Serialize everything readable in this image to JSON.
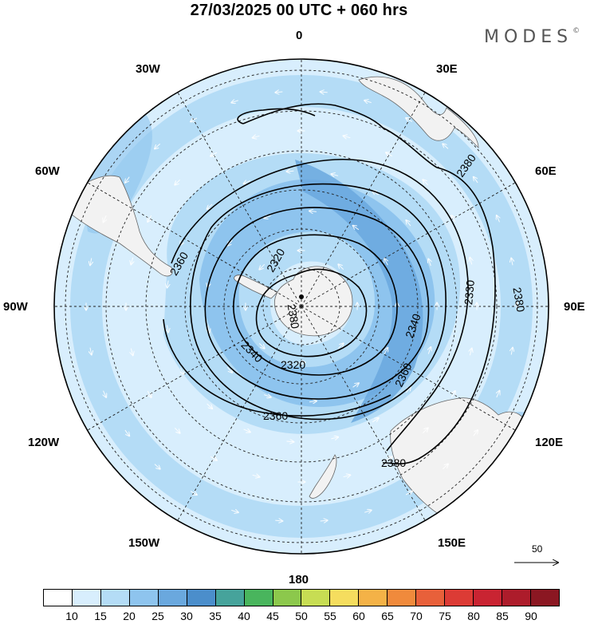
{
  "header": {
    "title": "27/03/2025  00 UTC  + 060 hrs",
    "brand": "MODES",
    "brand_mark": "©"
  },
  "map": {
    "projection": "polar-stereographic-south",
    "lon_labels": [
      "0",
      "30E",
      "60E",
      "90E",
      "120E",
      "150E",
      "180",
      "150W",
      "120W",
      "90W",
      "60W",
      "30W"
    ],
    "contour_labels": [
      "2320",
      "2320",
      "2340",
      "2340",
      "2360",
      "2360",
      "2380",
      "2380",
      "2380",
      "2380",
      "2330",
      "2360"
    ],
    "shading_colors": [
      "#ffffff",
      "#d8eefd",
      "#b4dcf6",
      "#8ec4ee",
      "#6aa8de"
    ],
    "reference_vector_label": "50"
  },
  "colorbar": {
    "colors": [
      "#ffffff",
      "#d8eefd",
      "#b4dcf6",
      "#8ec4ee",
      "#6aa8de",
      "#4b8ecb",
      "#46a39b",
      "#49b55d",
      "#8cc84c",
      "#c7dd53",
      "#f5dd5e",
      "#f4b247",
      "#f08a3c",
      "#e8603a",
      "#dc3b35",
      "#c92432",
      "#ad1c2b",
      "#8b1722"
    ],
    "ticks": [
      "10",
      "15",
      "20",
      "25",
      "30",
      "35",
      "40",
      "45",
      "50",
      "55",
      "60",
      "65",
      "70",
      "75",
      "80",
      "85",
      "90"
    ]
  }
}
